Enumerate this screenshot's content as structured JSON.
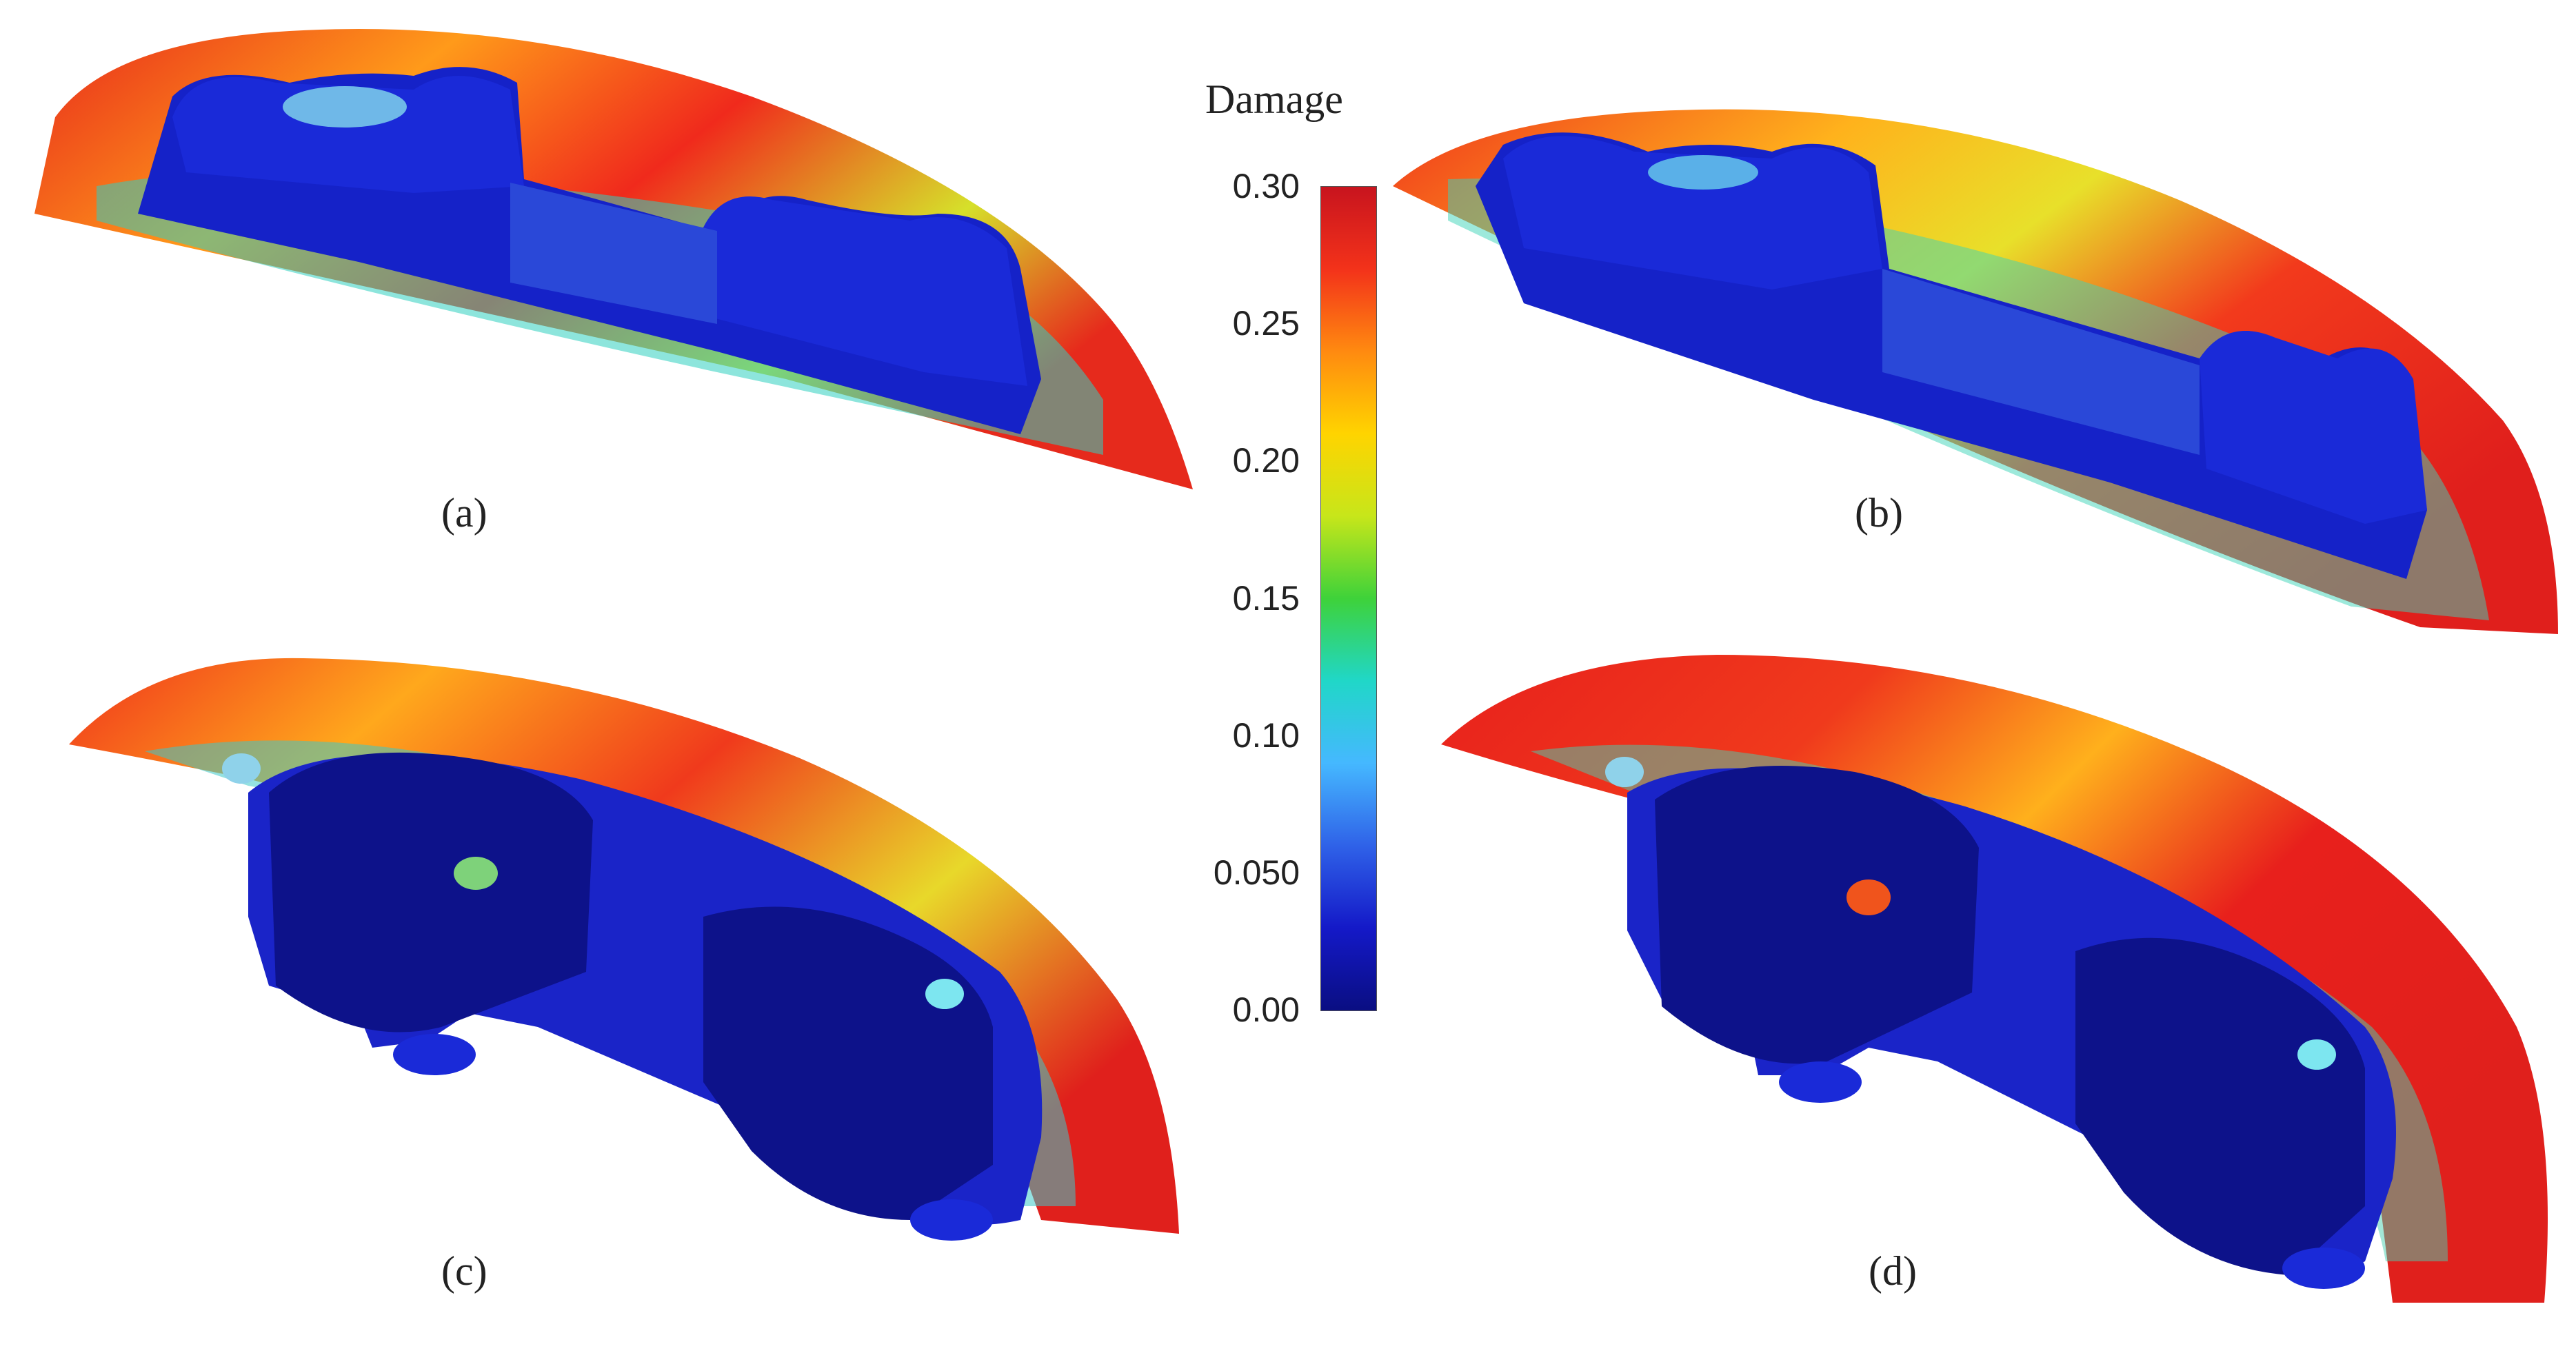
{
  "figure": {
    "panels": [
      {
        "label": "(a)"
      },
      {
        "label": "(b)"
      },
      {
        "label": "(c)"
      },
      {
        "label": "(d)"
      }
    ],
    "colorbar": {
      "title": "Damage",
      "ticks": [
        "0.30",
        "0.25",
        "0.20",
        "0.15",
        "0.10",
        "0.050",
        "0.00"
      ],
      "range": [
        0.0,
        0.3
      ],
      "colors": [
        "#c8141e",
        "#f3321a",
        "#ff8a10",
        "#ffd400",
        "#c7e61a",
        "#3ed23a",
        "#20d7c8",
        "#45b8ff",
        "#2f62e8",
        "#1419c8",
        "#0a0e82"
      ]
    }
  }
}
